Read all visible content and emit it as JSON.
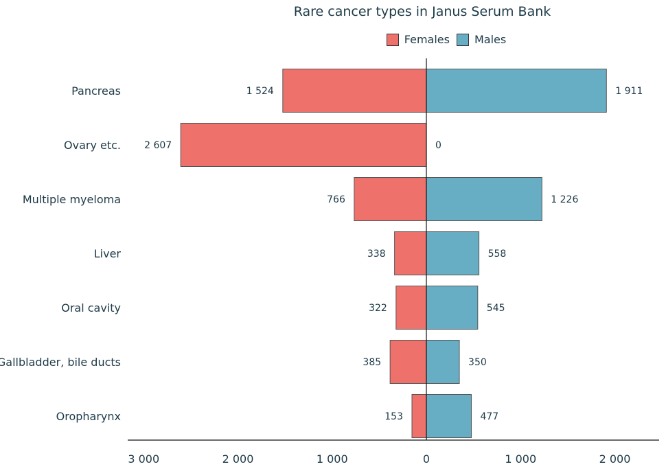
{
  "chart_data": {
    "type": "bar",
    "orientation": "horizontal-diverging",
    "title": "Rare cancer types in Janus Serum Bank",
    "categories": [
      "Pancreas",
      "Ovary etc.",
      "Multiple myeloma",
      "Liver",
      "Oral cavity",
      "Gallbladder, bile ducts",
      "Oropharynx"
    ],
    "series": [
      {
        "name": "Females",
        "color": "#ee716b",
        "values": [
          1524,
          2607,
          766,
          338,
          322,
          385,
          153
        ],
        "labels": [
          "1 524",
          "2 607",
          "766",
          "338",
          "322",
          "385",
          "153"
        ]
      },
      {
        "name": "Males",
        "color": "#67aec4",
        "values": [
          1911,
          0,
          1226,
          558,
          545,
          350,
          477
        ],
        "labels": [
          "1 911",
          "0",
          "1 226",
          "558",
          "545",
          "350",
          "477"
        ]
      }
    ],
    "xlim": [
      -3000,
      2000
    ],
    "xticks": [
      -3000,
      -2000,
      -1000,
      0,
      1000,
      2000
    ],
    "xtick_labels": [
      "3 000",
      "2 000",
      "1 000",
      "0",
      "1 000",
      "2 000"
    ],
    "legend_position": "top-center",
    "grid": false
  }
}
